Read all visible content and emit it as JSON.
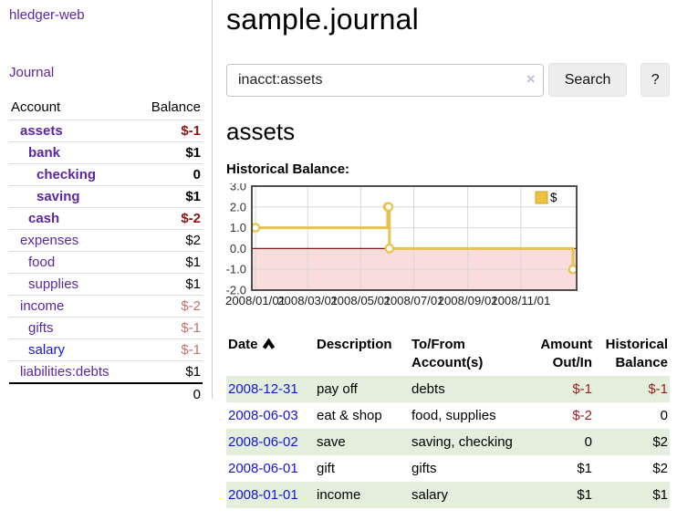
{
  "app": {
    "brand": "hledger-web"
  },
  "colors": {
    "link_purple": "#5b27a5",
    "link_blue": "#1414d6",
    "negative_strong": "#8f1414",
    "negative_light": "#c4706e",
    "negative_table": "#9b1c1c",
    "row_stripe_green": "#e3efdc"
  },
  "sidebar": {
    "journal_link": "Journal",
    "headers": {
      "account": "Account",
      "balance": "Balance"
    },
    "rows": [
      {
        "name": "assets",
        "level": 1,
        "bold": true,
        "balance": "$-1",
        "balance_color": "neg-strong"
      },
      {
        "name": "bank",
        "level": 2,
        "bold": true,
        "balance": "$1",
        "balance_color": ""
      },
      {
        "name": "checking",
        "level": 3,
        "bold": true,
        "balance": "0",
        "balance_color": ""
      },
      {
        "name": "saving",
        "level": 3,
        "bold": true,
        "balance": "$1",
        "balance_color": ""
      },
      {
        "name": "cash",
        "level": 2,
        "bold": true,
        "balance": "$-2",
        "balance_color": "neg-strong"
      },
      {
        "name": "expenses",
        "level": 1,
        "bold": false,
        "balance": "$2",
        "balance_color": ""
      },
      {
        "name": "food",
        "level": 2,
        "bold": false,
        "balance": "$1",
        "balance_color": ""
      },
      {
        "name": "supplies",
        "level": 2,
        "bold": false,
        "balance": "$1",
        "balance_color": ""
      },
      {
        "name": "income",
        "level": 1,
        "bold": false,
        "balance": "$-2",
        "balance_color": "neg-light"
      },
      {
        "name": "gifts",
        "level": 2,
        "bold": false,
        "balance": "$-1",
        "balance_color": "neg-light"
      },
      {
        "name": "salary",
        "level": 2,
        "bold": false,
        "balance": "$-1",
        "balance_color": "neg-light",
        "link_color": "blue"
      },
      {
        "name": "liabilities:debts",
        "level": 1,
        "bold": false,
        "balance": "$1",
        "balance_color": ""
      }
    ],
    "total": "0"
  },
  "main": {
    "title": "sample.journal",
    "search": {
      "value": "inacct:assets",
      "clear_icon": "×",
      "button": "Search",
      "help": "?"
    },
    "account_heading": "assets",
    "chart_label": "Historical Balance:"
  },
  "chart_data": {
    "type": "line",
    "title": "Historical Balance",
    "legend": [
      {
        "label": "$",
        "color": "#edc240"
      }
    ],
    "legend_position": "top-right",
    "line_style": "step",
    "points": [
      {
        "date": "2008-01-01",
        "value": 1
      },
      {
        "date": "2008-06-01",
        "value": 2
      },
      {
        "date": "2008-06-02",
        "value": 2
      },
      {
        "date": "2008-06-03",
        "value": 0
      },
      {
        "date": "2008-12-31",
        "value": -1
      }
    ],
    "y_ticks": [
      "3.0",
      "2.0",
      "1.0",
      "0.0",
      "-1.0",
      "-2.0"
    ],
    "ylim": [
      -2,
      3
    ],
    "x_ticks": [
      "2008/01/01",
      "2008/03/01",
      "2008/05/01",
      "2008/07/01",
      "2008/09/01",
      "2008/11/01"
    ],
    "xlim": [
      "2008-01-01",
      "2008-12-31"
    ],
    "grid": true,
    "negative_region_fill": "#f9dcdc",
    "zero_line_color": "#8b1a1a",
    "line_color": "#e9c24d",
    "marker_fill": "#ffffff",
    "plot_border_color": "#4f4f4f"
  },
  "transactions": {
    "headers": [
      "Date",
      "Description",
      "To/From Account(s)",
      "Amount Out/In",
      "Historical Balance"
    ],
    "sort": {
      "column": "Date",
      "direction": "ascending"
    },
    "rows": [
      {
        "date": "2008-12-31",
        "description": "pay off",
        "accounts": "debts",
        "amount": "$-1",
        "historical": "$-1",
        "stripe": true
      },
      {
        "date": "2008-06-03",
        "description": "eat & shop",
        "accounts": "food, supplies",
        "amount": "$-2",
        "historical": "0",
        "stripe": false
      },
      {
        "date": "2008-06-02",
        "description": "save",
        "accounts": "saving, checking",
        "amount": "0",
        "historical": "$2",
        "stripe": true
      },
      {
        "date": "2008-06-01",
        "description": "gift",
        "accounts": "gifts",
        "amount": "$1",
        "historical": "$2",
        "stripe": false
      },
      {
        "date": "2008-01-01",
        "description": "income",
        "accounts": "salary",
        "amount": "$1",
        "historical": "$1",
        "stripe": true
      }
    ]
  }
}
